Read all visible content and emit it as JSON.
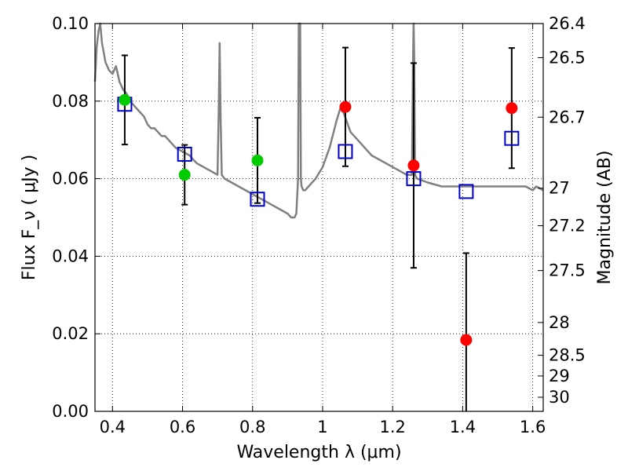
{
  "chart_data": {
    "type": "scatter",
    "xlabel": "Wavelength  λ (μm)",
    "ylabel": "Flux  F_ν  ( μJy )",
    "ylabel_right": "Magnitude (AB)",
    "xlim": [
      0.35,
      1.63
    ],
    "ylim": [
      0.0,
      0.1
    ],
    "grid": true,
    "x_ticks": [
      {
        "value": 0.4,
        "label": "0.4"
      },
      {
        "value": 0.6,
        "label": "0.6"
      },
      {
        "value": 0.8,
        "label": "0.8"
      },
      {
        "value": 1.0,
        "label": "1"
      },
      {
        "value": 1.2,
        "label": "1.2"
      },
      {
        "value": 1.4,
        "label": "1.4"
      },
      {
        "value": 1.6,
        "label": "1.6"
      }
    ],
    "y_ticks": [
      {
        "value": 0.0,
        "label": "0.00"
      },
      {
        "value": 0.02,
        "label": "0.02"
      },
      {
        "value": 0.04,
        "label": "0.04"
      },
      {
        "value": 0.06,
        "label": "0.06"
      },
      {
        "value": 0.08,
        "label": "0.08"
      },
      {
        "value": 0.1,
        "label": "0.10"
      }
    ],
    "right_ticks": [
      {
        "mag": 26.4,
        "label": "26.4"
      },
      {
        "mag": 26.5,
        "label": "26.5"
      },
      {
        "mag": 26.7,
        "label": "26.7"
      },
      {
        "mag": 27.0,
        "label": "27"
      },
      {
        "mag": 27.2,
        "label": "27.2"
      },
      {
        "mag": 27.5,
        "label": "27.5"
      },
      {
        "mag": 28.0,
        "label": "28"
      },
      {
        "mag": 28.5,
        "label": "28.5"
      },
      {
        "mag": 29.0,
        "label": "29"
      },
      {
        "mag": 30.0,
        "label": "30"
      }
    ],
    "model_spectrum": {
      "color": "#808080",
      "x": [
        0.35,
        0.355,
        0.36,
        0.365,
        0.37,
        0.38,
        0.39,
        0.4,
        0.41,
        0.42,
        0.43,
        0.44,
        0.45,
        0.46,
        0.47,
        0.48,
        0.49,
        0.5,
        0.51,
        0.52,
        0.53,
        0.54,
        0.55,
        0.56,
        0.58,
        0.6,
        0.62,
        0.64,
        0.66,
        0.68,
        0.7,
        0.703,
        0.706,
        0.709,
        0.712,
        0.72,
        0.74,
        0.76,
        0.78,
        0.8,
        0.82,
        0.84,
        0.86,
        0.88,
        0.9,
        0.91,
        0.92,
        0.925,
        0.93,
        0.932,
        0.934,
        0.936,
        0.938,
        0.94,
        0.945,
        0.95,
        0.96,
        0.98,
        1.0,
        1.02,
        1.04,
        1.05,
        1.06,
        1.08,
        1.1,
        1.12,
        1.14,
        1.16,
        1.18,
        1.2,
        1.22,
        1.24,
        1.255,
        1.258,
        1.26,
        1.262,
        1.264,
        1.27,
        1.3,
        1.34,
        1.38,
        1.42,
        1.46,
        1.5,
        1.54,
        1.58,
        1.6,
        1.61,
        1.63
      ],
      "y": [
        0.085,
        0.094,
        0.098,
        0.1,
        0.095,
        0.09,
        0.088,
        0.087,
        0.089,
        0.085,
        0.083,
        0.082,
        0.08,
        0.079,
        0.078,
        0.077,
        0.076,
        0.074,
        0.073,
        0.073,
        0.072,
        0.071,
        0.071,
        0.07,
        0.068,
        0.067,
        0.066,
        0.064,
        0.063,
        0.062,
        0.061,
        0.076,
        0.095,
        0.075,
        0.061,
        0.06,
        0.059,
        0.058,
        0.057,
        0.056,
        0.055,
        0.054,
        0.053,
        0.052,
        0.051,
        0.05,
        0.05,
        0.051,
        0.06,
        0.1,
        0.11,
        0.1,
        0.06,
        0.058,
        0.057,
        0.057,
        0.058,
        0.06,
        0.063,
        0.068,
        0.075,
        0.078,
        0.077,
        0.072,
        0.07,
        0.068,
        0.066,
        0.065,
        0.064,
        0.063,
        0.062,
        0.061,
        0.061,
        0.09,
        0.12,
        0.09,
        0.061,
        0.06,
        0.059,
        0.058,
        0.058,
        0.058,
        0.058,
        0.058,
        0.058,
        0.058,
        0.057,
        0.058,
        0.057
      ]
    },
    "series": [
      {
        "marker": "open-square",
        "color": "#0000cc",
        "points": [
          {
            "x": 0.435,
            "y": 0.0792
          },
          {
            "x": 0.606,
            "y": 0.0663
          },
          {
            "x": 0.814,
            "y": 0.0547
          },
          {
            "x": 1.065,
            "y": 0.067
          },
          {
            "x": 1.26,
            "y": 0.06
          },
          {
            "x": 1.41,
            "y": 0.0567
          },
          {
            "x": 1.54,
            "y": 0.0704
          }
        ]
      },
      {
        "marker": "filled-circle",
        "color": "#00cc00",
        "points": [
          {
            "x": 0.435,
            "y": 0.0803,
            "err": 0.0115
          },
          {
            "x": 0.606,
            "y": 0.061,
            "err": 0.0077
          },
          {
            "x": 0.814,
            "y": 0.0647,
            "err": 0.011
          }
        ]
      },
      {
        "marker": "filled-circle",
        "color": "#ff0000",
        "points": [
          {
            "x": 1.065,
            "y": 0.0785,
            "err": 0.0153
          },
          {
            "x": 1.26,
            "y": 0.0634,
            "err": 0.0264
          },
          {
            "x": 1.41,
            "y": 0.0184,
            "err": 0.0224
          },
          {
            "x": 1.54,
            "y": 0.0782,
            "err": 0.0155
          }
        ]
      }
    ]
  }
}
